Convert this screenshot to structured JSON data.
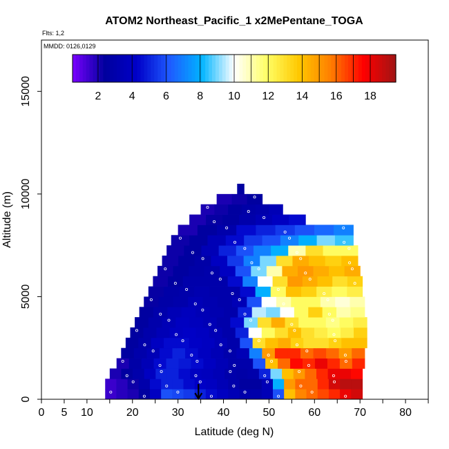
{
  "chart_data": {
    "type": "heatmap",
    "title": "ATOM2 Northeast_Pacific_1 x2MePentane_TOGA",
    "flights_note": "Flts: 1,2",
    "date_note": "MMDD: 0126,0129",
    "xlabel": "Latitude (deg N)",
    "ylabel": "Altitude (m)",
    "xlim": [
      0,
      85
    ],
    "ylim": [
      0,
      17500
    ],
    "x_ticks": [
      0,
      5,
      10,
      20,
      30,
      40,
      50,
      60,
      70,
      80
    ],
    "y_ticks": [
      0,
      5000,
      10000,
      15000
    ],
    "colorbar": {
      "min": 0.5,
      "max": 19.5,
      "ticks": [
        2,
        4,
        6,
        8,
        10,
        12,
        14,
        16,
        18
      ],
      "stops": [
        "#7a00ff",
        "#00009e",
        "#0000c8",
        "#1e5aff",
        "#00b4ff",
        "#ffffff",
        "#ffff66",
        "#ffc800",
        "#ff7d00",
        "#ff0000",
        "#a01414"
      ]
    },
    "marker_latitude": 34.5,
    "altitude_bin_m": 500,
    "profile_rows": [
      {
        "altitude": 250,
        "lat_min": 14.0,
        "lat_max": 70.5,
        "values": [
          1.5,
          1.8,
          2.0,
          2.5,
          4.0,
          6.0,
          5.8,
          5.5,
          5.0,
          4.5,
          4.0,
          3.5,
          3.0,
          3.0,
          3.5,
          6.0,
          14.0,
          15.5,
          16.0,
          16.5,
          17.0,
          18.0,
          18.5
        ]
      },
      {
        "altitude": 750,
        "lat_min": 14.0,
        "lat_max": 70.5,
        "values": [
          1.5,
          1.8,
          2.2,
          3.0,
          4.5,
          5.0,
          5.0,
          4.5,
          4.2,
          4.0,
          3.5,
          3.0,
          2.5,
          2.5,
          3.5,
          8.0,
          15.0,
          16.0,
          16.0,
          17.0,
          18.5,
          19.0,
          19.0
        ]
      },
      {
        "altitude": 1250,
        "lat_min": 15.0,
        "lat_max": 70.5,
        "values": [
          2.0,
          2.5,
          3.0,
          4.0,
          5.0,
          5.0,
          4.5,
          4.0,
          3.8,
          3.5,
          3.0,
          2.8,
          3.0,
          5.0,
          9.0,
          14.0,
          15.0,
          16.0,
          17.0,
          18.0,
          18.0,
          17.5
        ]
      },
      {
        "altitude": 1750,
        "lat_min": 16.5,
        "lat_max": 71.0,
        "values": [
          2.0,
          2.8,
          3.5,
          4.5,
          5.0,
          4.8,
          4.5,
          4.0,
          3.5,
          3.0,
          3.0,
          6.0,
          14.0,
          16.0,
          17.5,
          17.0,
          18.0,
          17.0,
          16.0,
          17.0
        ]
      },
      {
        "altitude": 2250,
        "lat_min": 17.5,
        "lat_max": 71.0,
        "values": [
          2.5,
          3.0,
          3.5,
          4.5,
          5.0,
          4.5,
          4.0,
          3.5,
          3.0,
          3.5,
          7.0,
          15.0,
          17.0,
          17.0,
          16.0,
          16.5,
          16.0,
          15.0,
          16.0
        ]
      },
      {
        "altitude": 2750,
        "lat_min": 18.5,
        "lat_max": 71.5,
        "values": [
          2.5,
          3.0,
          4.0,
          4.5,
          4.5,
          4.2,
          4.0,
          3.5,
          3.0,
          6.0,
          13.0,
          14.0,
          14.5,
          13.5,
          13.0,
          13.0,
          13.5,
          14.0,
          14.0
        ]
      },
      {
        "altitude": 3250,
        "lat_min": 19.5,
        "lat_max": 71.5,
        "values": [
          2.5,
          3.0,
          3.5,
          4.0,
          4.2,
          4.0,
          3.5,
          3.0,
          5.0,
          10.0,
          12.0,
          13.0,
          14.0,
          13.0,
          12.5,
          12.0,
          12.5,
          13.5
        ]
      },
      {
        "altitude": 3750,
        "lat_min": 20.5,
        "lat_max": 71.5,
        "values": [
          2.5,
          3.0,
          3.5,
          4.0,
          3.8,
          3.5,
          3.0,
          4.5,
          9.0,
          13.0,
          14.5,
          13.0,
          12.0,
          12.0,
          11.5,
          12.0,
          12.5
        ]
      },
      {
        "altitude": 4250,
        "lat_min": 21.5,
        "lat_max": 71.0,
        "values": [
          2.5,
          3.0,
          3.5,
          3.8,
          3.5,
          3.2,
          3.0,
          5.0,
          9.5,
          9.0,
          10.0,
          12.0,
          13.5,
          12.0,
          11.0,
          11.5
        ]
      },
      {
        "altitude": 4750,
        "lat_min": 22.5,
        "lat_max": 71.0,
        "values": [
          2.3,
          2.8,
          3.0,
          3.5,
          3.2,
          3.0,
          3.5,
          6.0,
          10.0,
          11.0,
          12.0,
          12.0,
          11.0,
          10.5,
          11.0
        ]
      },
      {
        "altitude": 5250,
        "lat_min": 23.5,
        "lat_max": 70.5,
        "values": [
          2.3,
          2.8,
          3.0,
          3.2,
          3.0,
          3.0,
          4.5,
          8.0,
          12.0,
          14.0,
          13.5,
          12.5,
          12.0,
          12.5
        ]
      },
      {
        "altitude": 5750,
        "lat_min": 24.5,
        "lat_max": 70.5,
        "values": [
          2.2,
          2.5,
          3.0,
          3.0,
          3.0,
          4.5,
          7.0,
          10.0,
          13.0,
          15.0,
          14.5,
          14.0,
          13.0,
          13.5
        ]
      },
      {
        "altitude": 6250,
        "lat_min": 25.5,
        "lat_max": 70.0,
        "values": [
          2.2,
          2.5,
          2.8,
          3.0,
          4.0,
          6.0,
          9.0,
          11.0,
          14.5,
          15.0,
          14.5,
          14.0,
          14.5
        ]
      },
      {
        "altitude": 6750,
        "lat_min": 26.5,
        "lat_max": 69.5,
        "values": [
          2.2,
          2.5,
          2.8,
          4.0,
          5.5,
          7.0,
          9.0,
          13.0,
          14.5,
          14.0,
          13.5,
          14.0
        ]
      },
      {
        "altitude": 7250,
        "lat_min": 27.5,
        "lat_max": 69.5,
        "values": [
          2.2,
          2.5,
          3.5,
          5.0,
          6.0,
          7.0,
          8.0,
          11.0,
          13.0,
          12.0,
          12.0
        ]
      },
      {
        "altitude": 7750,
        "lat_min": 28.5,
        "lat_max": 68.5,
        "values": [
          2.2,
          2.5,
          3.5,
          4.5,
          5.5,
          6.0,
          7.0,
          8.0,
          9.0,
          8.5
        ]
      },
      {
        "altitude": 8250,
        "lat_min": 30.0,
        "lat_max": 68.5,
        "values": [
          2.0,
          2.5,
          3.0,
          4.5,
          5.0,
          5.5,
          6.0,
          6.5,
          7.0
        ]
      },
      {
        "altitude": 8750,
        "lat_min": 32.5,
        "lat_max": 58.0,
        "values": [
          2.0,
          2.3,
          2.5,
          3.0,
          3.5,
          4.0,
          4.5
        ]
      },
      {
        "altitude": 9250,
        "lat_min": 35.0,
        "lat_max": 53.0,
        "values": [
          2.0,
          2.2,
          2.5,
          2.8,
          3.0,
          3.5
        ]
      },
      {
        "altitude": 9750,
        "lat_min": 38.5,
        "lat_max": 48.5,
        "values": [
          2.0,
          2.2,
          2.5
        ]
      },
      {
        "altitude": 10250,
        "lat_min": 43.0,
        "lat_max": 44.5,
        "values": [
          2.5
        ]
      }
    ]
  }
}
